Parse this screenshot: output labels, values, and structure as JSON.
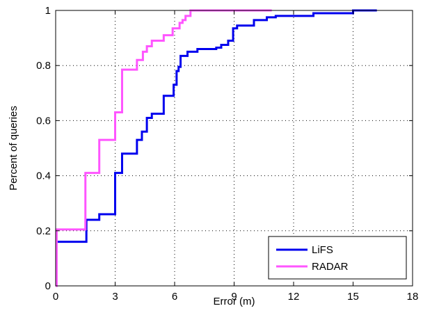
{
  "chart_data": {
    "type": "line",
    "title": "",
    "xlabel": "Error (m)",
    "ylabel": "Percent of queries",
    "xlim": [
      0,
      18
    ],
    "ylim": [
      0,
      1
    ],
    "xticks": [
      0,
      3,
      6,
      9,
      12,
      15,
      18
    ],
    "yticks": [
      0,
      0.2,
      0.4,
      0.6,
      0.8,
      1
    ],
    "xtick_labels": [
      "0",
      "3",
      "6",
      "9",
      "12",
      "15",
      "18"
    ],
    "ytick_labels": [
      "0",
      "0.2",
      "0.4",
      "0.6",
      "0.8",
      "1"
    ],
    "grid": true,
    "legend_position": "bottom-right",
    "step": true,
    "series": [
      {
        "name": "LiFS",
        "color": "#0000ee",
        "x": [
          0,
          1.55,
          1.55,
          2.2,
          2.2,
          3.0,
          3.0,
          3.35,
          3.35,
          4.1,
          4.1,
          4.35,
          4.35,
          4.6,
          4.6,
          4.85,
          4.85,
          5.45,
          5.45,
          5.95,
          5.95,
          6.1,
          6.1,
          6.2,
          6.2,
          6.3,
          6.3,
          6.65,
          6.65,
          7.15,
          7.15,
          8.1,
          8.1,
          8.35,
          8.35,
          8.7,
          8.7,
          8.95,
          8.95,
          9.15,
          9.15,
          10.0,
          10.0,
          10.65,
          10.65,
          11.1,
          11.1,
          13.0,
          13.0,
          15.0,
          15.0,
          16.2
        ],
        "y": [
          0.16,
          0.16,
          0.24,
          0.24,
          0.26,
          0.26,
          0.41,
          0.41,
          0.48,
          0.48,
          0.53,
          0.53,
          0.56,
          0.56,
          0.61,
          0.61,
          0.625,
          0.625,
          0.69,
          0.69,
          0.73,
          0.73,
          0.78,
          0.78,
          0.795,
          0.795,
          0.835,
          0.835,
          0.85,
          0.85,
          0.86,
          0.86,
          0.865,
          0.865,
          0.875,
          0.875,
          0.89,
          0.89,
          0.935,
          0.935,
          0.945,
          0.945,
          0.965,
          0.965,
          0.975,
          0.975,
          0.98,
          0.98,
          0.99,
          0.99,
          1.0,
          1.0
        ]
      },
      {
        "name": "RADAR",
        "color": "#ff55ff",
        "x": [
          0,
          0.05,
          0.05,
          1.5,
          1.5,
          2.2,
          2.2,
          3.0,
          3.0,
          3.35,
          3.35,
          4.1,
          4.1,
          4.4,
          4.4,
          4.6,
          4.6,
          4.85,
          4.85,
          5.45,
          5.45,
          5.9,
          5.9,
          6.25,
          6.25,
          6.4,
          6.4,
          6.55,
          6.55,
          6.8,
          6.8,
          7.7,
          7.7,
          10.9
        ],
        "y": [
          0,
          0,
          0.205,
          0.205,
          0.41,
          0.41,
          0.53,
          0.53,
          0.63,
          0.63,
          0.785,
          0.785,
          0.82,
          0.82,
          0.85,
          0.85,
          0.87,
          0.87,
          0.89,
          0.89,
          0.91,
          0.91,
          0.935,
          0.935,
          0.955,
          0.955,
          0.965,
          0.965,
          0.98,
          0.98,
          1.0,
          1.0,
          1.0,
          1.0
        ]
      }
    ]
  }
}
